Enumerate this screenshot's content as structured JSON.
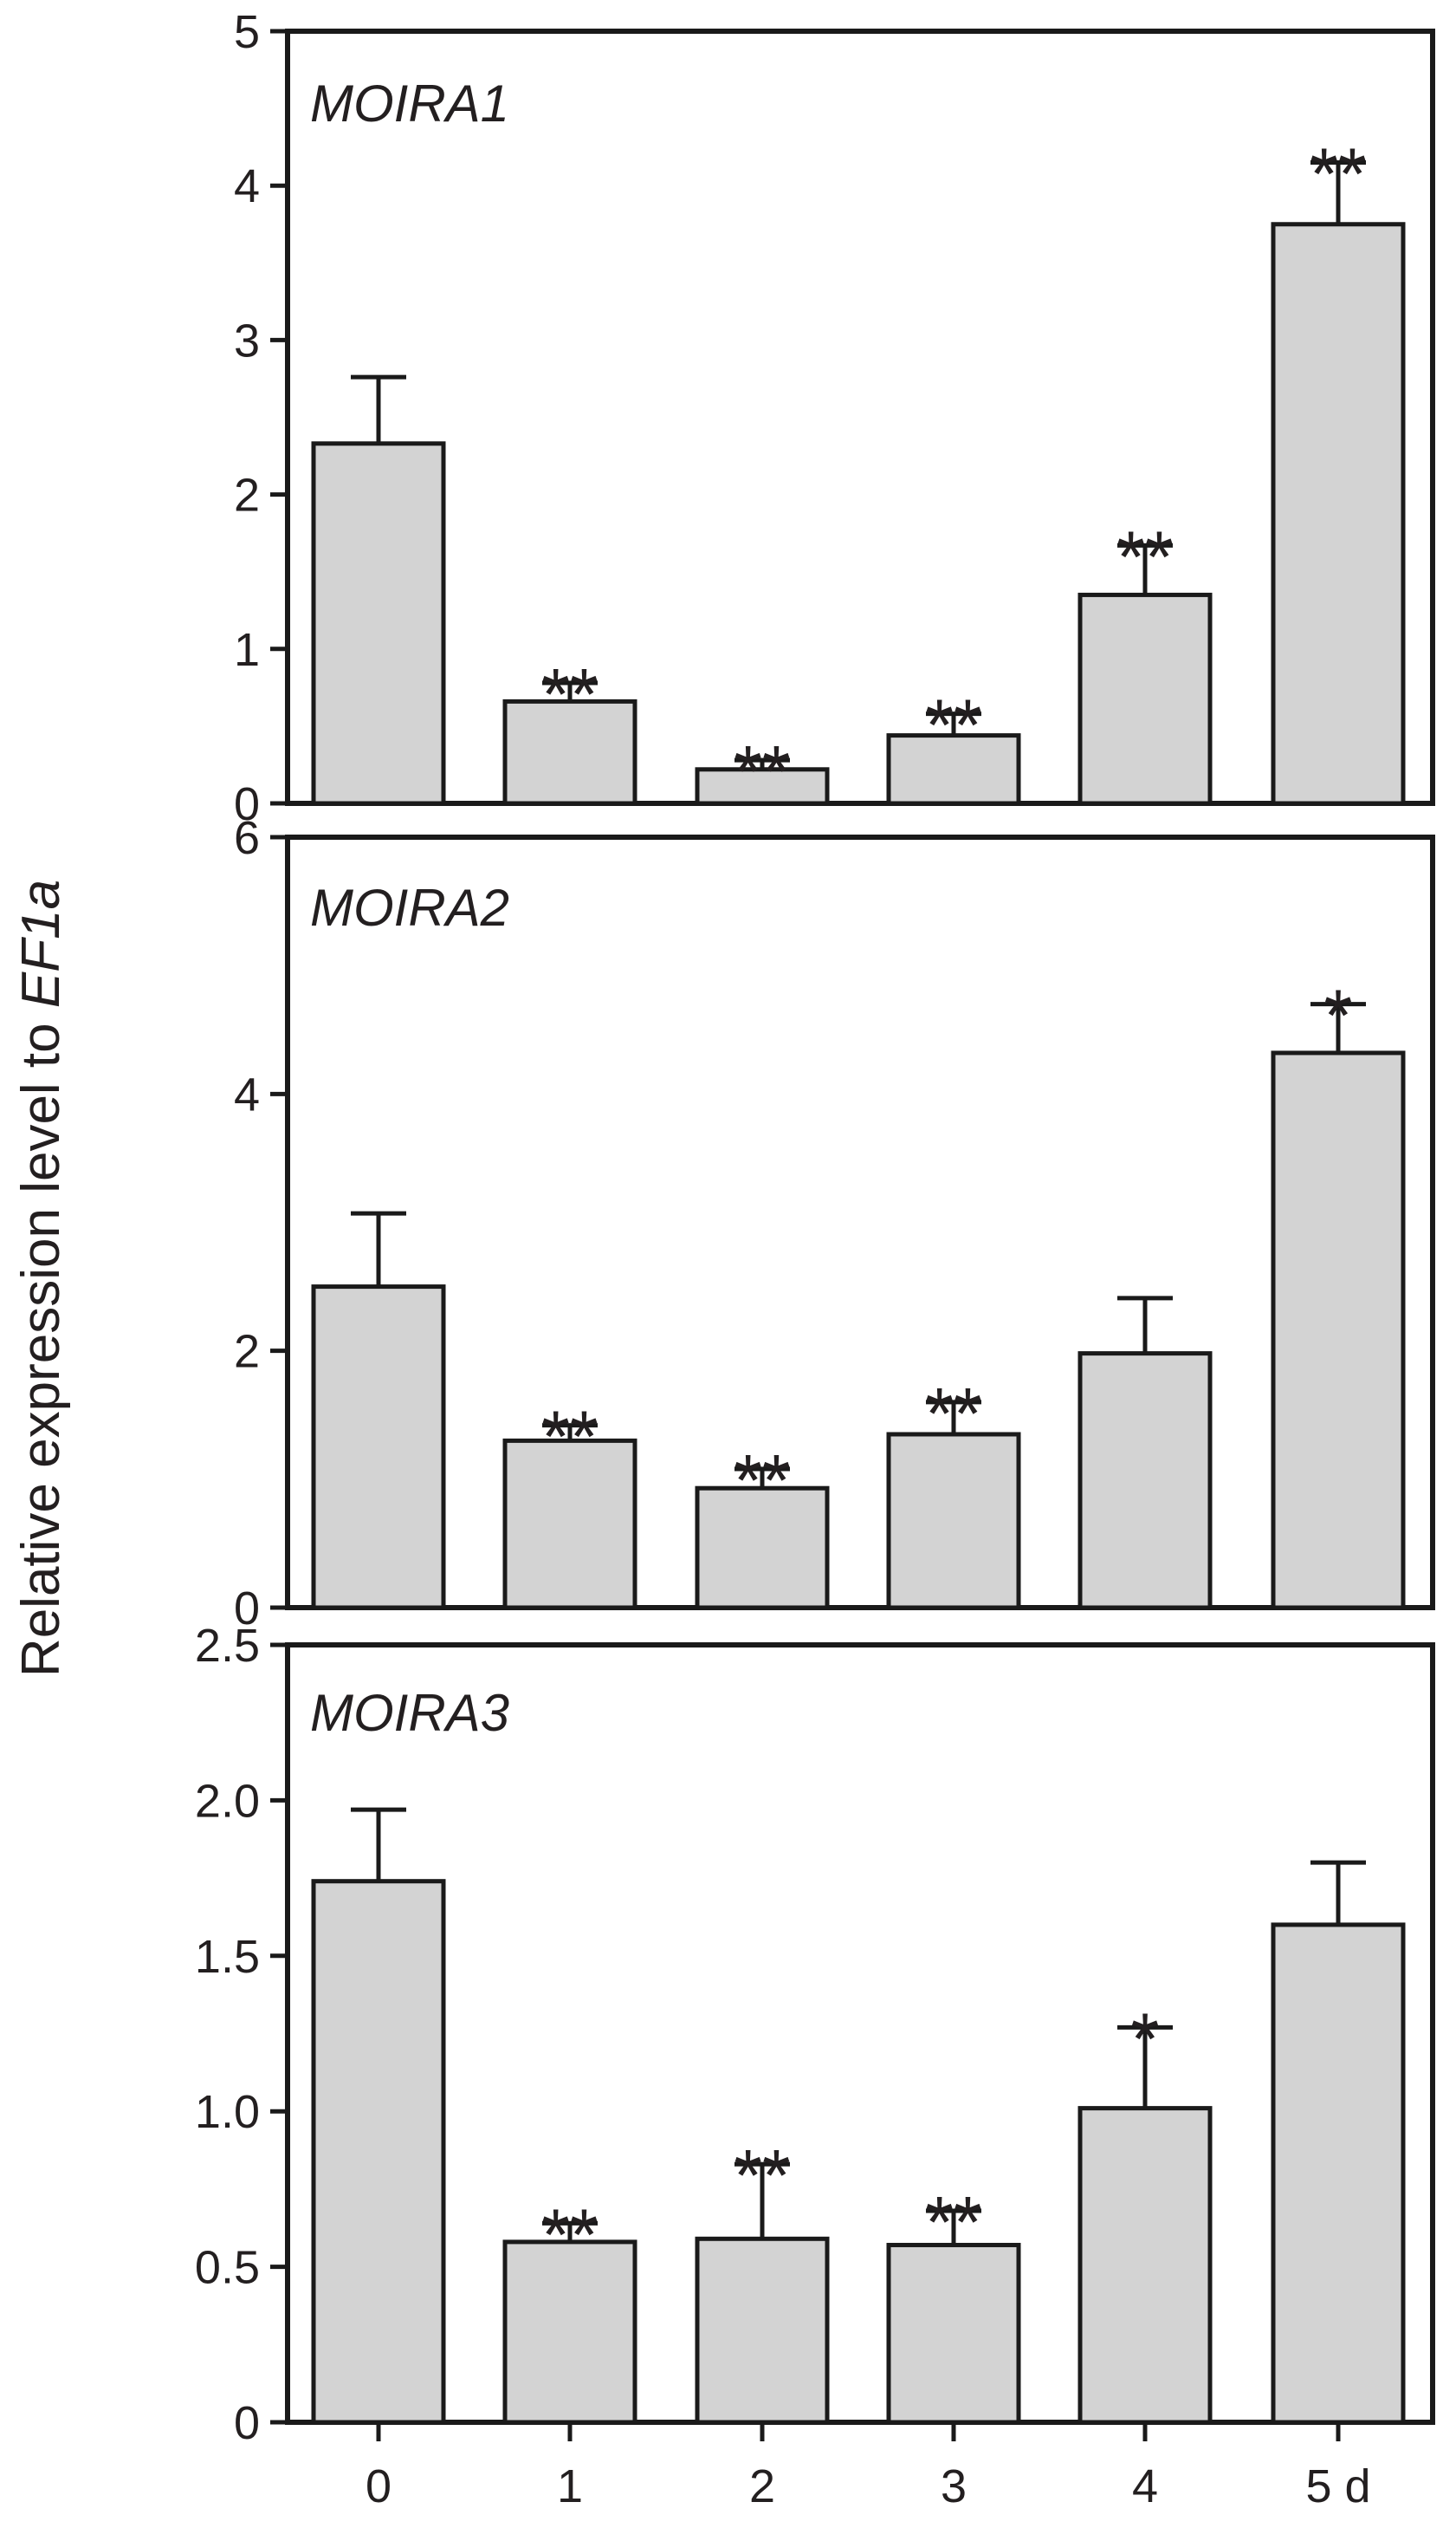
{
  "chart_data": {
    "type": "bar",
    "ylabel_prefix": "Relative expression level to ",
    "ylabel_gene": "EF1a",
    "categories": [
      "0",
      "1",
      "2",
      "3",
      "4",
      "5 d"
    ],
    "bar_color": "#d3d3d3",
    "panels": [
      {
        "title": "MOIRA1",
        "ylim": [
          0,
          5
        ],
        "yticks": [
          "0",
          "1",
          "2",
          "3",
          "4",
          "5"
        ],
        "values": [
          2.33,
          0.66,
          0.22,
          0.44,
          1.35,
          3.75
        ],
        "errors": [
          0.43,
          0.12,
          0.06,
          0.14,
          0.32,
          0.4
        ],
        "significance": [
          "",
          "**",
          "**",
          "**",
          "**",
          "**"
        ]
      },
      {
        "title": "MOIRA2",
        "ylim": [
          0,
          6
        ],
        "yticks": [
          "0",
          "2",
          "4",
          "6"
        ],
        "values": [
          2.5,
          1.3,
          0.93,
          1.35,
          1.98,
          4.32
        ],
        "errors": [
          0.57,
          0.12,
          0.15,
          0.25,
          0.43,
          0.38
        ],
        "significance": [
          "",
          "**",
          "**",
          "**",
          "",
          "*"
        ]
      },
      {
        "title": "MOIRA3",
        "ylim": [
          0,
          2.5
        ],
        "yticks": [
          "0",
          "0.5",
          "1.0",
          "1.5",
          "2.0",
          "2.5"
        ],
        "values": [
          1.74,
          0.58,
          0.59,
          0.57,
          1.01,
          1.6
        ],
        "errors": [
          0.23,
          0.06,
          0.24,
          0.11,
          0.26,
          0.2
        ],
        "significance": [
          "",
          "**",
          "**",
          "**",
          "*",
          ""
        ]
      }
    ]
  }
}
